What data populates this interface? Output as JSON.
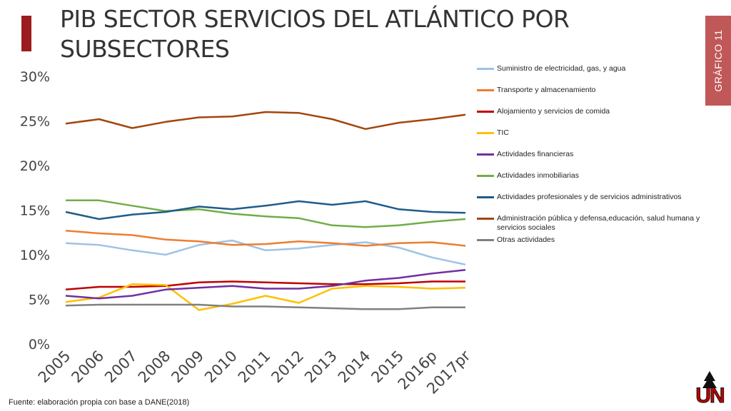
{
  "slide": {
    "title": "PIB SECTOR SERVICIOS DEL ATLÁNTICO POR SUBSECTORES",
    "side_tab": "GRÁFICO 11",
    "source": "Fuente: elaboración propia con base a DANE(2018)",
    "logo_text": "UN",
    "colors": {
      "accent": "#9b1c1c",
      "side_tab": "#c05858",
      "logo": "#c00000"
    }
  },
  "chart_data": {
    "type": "line",
    "title": "PIB SECTOR SERVICIOS DEL ATLÁNTICO POR SUBSECTORES",
    "xlabel": "",
    "ylabel": "",
    "categories": [
      "2005",
      "2006",
      "2007",
      "2008",
      "2009",
      "2010",
      "2011",
      "2012",
      "2013",
      "2014",
      "2015",
      "2016p",
      "2017pr"
    ],
    "y_ticks": [
      "0%",
      "5%",
      "10%",
      "15%",
      "20%",
      "25%",
      "30%"
    ],
    "ylim": [
      0,
      30
    ],
    "grid": false,
    "legend_position": "right",
    "series": [
      {
        "name": "Suministro de electricidad, gas, y agua",
        "color": "#9dc3e6",
        "values": [
          11.3,
          11.1,
          10.5,
          10.0,
          11.1,
          11.6,
          10.5,
          10.7,
          11.1,
          11.4,
          10.8,
          9.7,
          8.9
        ]
      },
      {
        "name": "Transporte y almacenamiento",
        "color": "#ed7d31",
        "values": [
          12.7,
          12.4,
          12.2,
          11.7,
          11.5,
          11.1,
          11.2,
          11.5,
          11.3,
          11.0,
          11.3,
          11.4,
          11.0
        ]
      },
      {
        "name": "Alojamiento y servicios de comida",
        "color": "#c00000",
        "values": [
          6.1,
          6.4,
          6.4,
          6.5,
          6.9,
          7.0,
          6.9,
          6.8,
          6.7,
          6.7,
          6.8,
          7.0,
          7.0
        ]
      },
      {
        "name": "TIC",
        "color": "#ffc000",
        "values": [
          4.7,
          5.2,
          6.7,
          6.6,
          3.8,
          4.5,
          5.4,
          4.6,
          6.2,
          6.5,
          6.4,
          6.2,
          6.3
        ]
      },
      {
        "name": "Actividades financieras",
        "color": "#7030a0",
        "values": [
          5.4,
          5.1,
          5.4,
          6.1,
          6.3,
          6.5,
          6.2,
          6.2,
          6.5,
          7.1,
          7.4,
          7.9,
          8.3
        ]
      },
      {
        "name": "Actividades inmobiliarias",
        "color": "#70ad47",
        "values": [
          16.1,
          16.1,
          15.5,
          14.9,
          15.1,
          14.6,
          14.3,
          14.1,
          13.3,
          13.1,
          13.3,
          13.7,
          14.0
        ]
      },
      {
        "name": "Actividades profesionales y de servicios administrativos",
        "color": "#1f5c8b",
        "values": [
          14.8,
          14.0,
          14.5,
          14.8,
          15.4,
          15.1,
          15.5,
          16.0,
          15.6,
          16.0,
          15.1,
          14.8,
          14.7
        ]
      },
      {
        "name": "Administración pública y defensa,educación, salud humana y servicios sociales",
        "color": "#a3460e",
        "values": [
          24.7,
          25.2,
          24.2,
          24.9,
          25.4,
          25.5,
          26.0,
          25.9,
          25.2,
          24.1,
          24.8,
          25.2,
          25.7
        ]
      },
      {
        "name": "Otras actividades",
        "color": "#808080",
        "values": [
          4.3,
          4.4,
          4.4,
          4.4,
          4.4,
          4.2,
          4.2,
          4.1,
          4.0,
          3.9,
          3.9,
          4.1,
          4.1
        ]
      }
    ]
  }
}
